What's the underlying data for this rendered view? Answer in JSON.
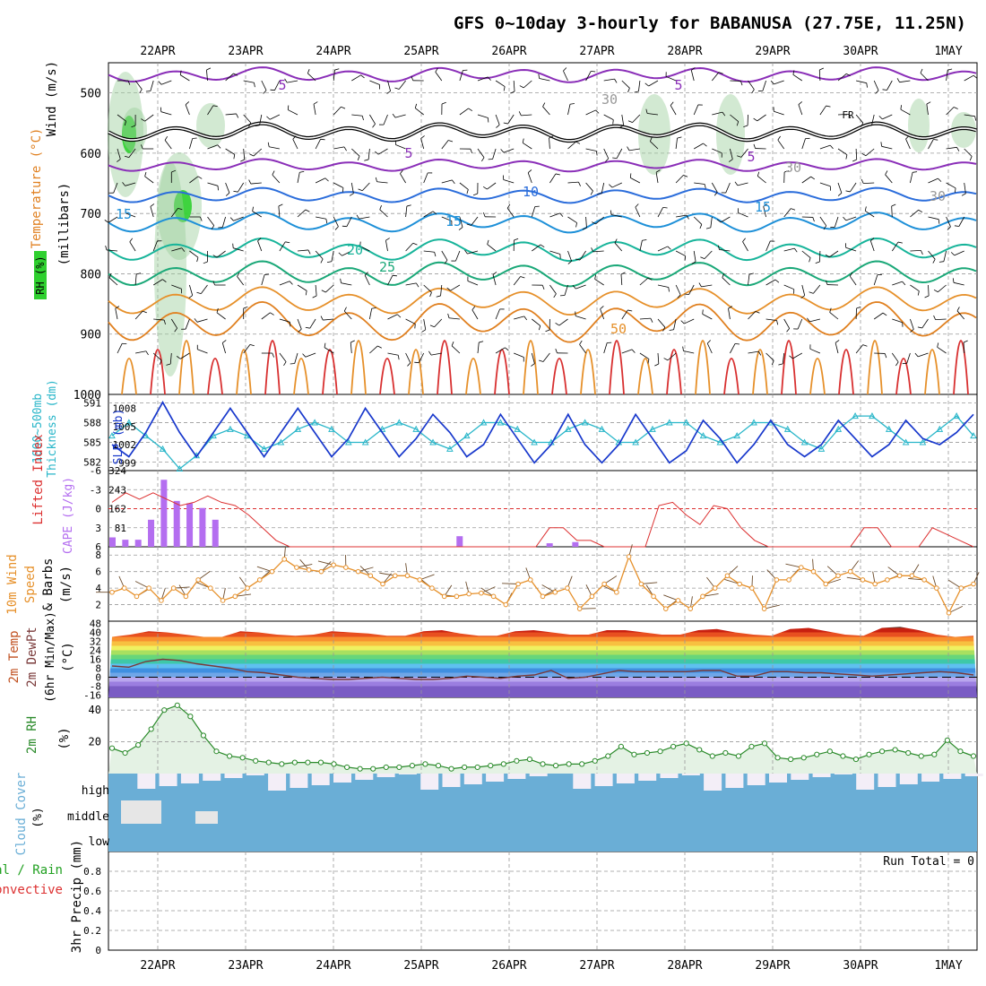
{
  "title": "GFS 0~10day 3-hourly for BABANUSA (27.75E, 11.25N)",
  "dates": [
    "22APR",
    "23APR",
    "24APR",
    "25APR",
    "26APR",
    "27APR",
    "28APR",
    "29APR",
    "30APR",
    "1MAY"
  ],
  "panels": {
    "upper_air": {
      "labels": [
        "Wind (m/s)",
        "Temperature (°C)",
        "RH (%)",
        "(millibars)"
      ],
      "ticks": [
        "500",
        "600",
        "700",
        "800",
        "900",
        "1000"
      ],
      "contour_labels": [
        "5",
        "5",
        "5",
        "5",
        "10",
        "15",
        "15",
        "15",
        "20",
        "25",
        "30",
        "30",
        "30",
        "50",
        "FR"
      ]
    },
    "pressure": {
      "labels": [
        "1000~500mb",
        "Thickness (dm)",
        "SLP (mb)"
      ],
      "thickness_ticks": [
        "591",
        "588",
        "585",
        "582"
      ],
      "slp_ticks": [
        "1008",
        "1005",
        "1002",
        "999"
      ]
    },
    "instability": {
      "labels": [
        "Lifted Index",
        "CAPE (J/kg)"
      ],
      "li_ticks": [
        "-6",
        "-3",
        "0",
        "3",
        "6"
      ],
      "cape_ticks": [
        "324",
        "243",
        "162",
        "81"
      ]
    },
    "wind10m": {
      "labels": [
        "10m Wind",
        "Speed",
        "& Barbs",
        "(m/s)"
      ],
      "ticks": [
        "8",
        "6",
        "4",
        "2"
      ]
    },
    "temp2m": {
      "labels": [
        "2m Temp",
        "2m DewPt",
        "(6hr Min/Max)",
        "(°C)"
      ],
      "ticks": [
        "48",
        "40",
        "32",
        "24",
        "16",
        "8",
        "0",
        "-8",
        "-16"
      ]
    },
    "rh2m": {
      "labels": [
        "2m RH",
        "(%)"
      ],
      "ticks": [
        "40",
        "20"
      ]
    },
    "cloud": {
      "labels": [
        "Cloud Cover",
        "(%)"
      ],
      "levels": [
        "high",
        "middle",
        "low"
      ]
    },
    "precip": {
      "labels": [
        "Total / Rain",
        "Convective",
        "3hr Precip (mm)"
      ],
      "ticks": [
        "0.8",
        "0.6",
        "0.4",
        "0.2",
        "0"
      ],
      "run_total": "Run Total = 0"
    }
  },
  "chart_data": {
    "type": "line",
    "x_dates": [
      "22APR",
      "23APR",
      "24APR",
      "25APR",
      "26APR",
      "27APR",
      "28APR",
      "29APR",
      "30APR",
      "1MAY"
    ],
    "slp_mb": [
      1002,
      1000,
      1004,
      1009,
      1004,
      1000,
      1004,
      1008,
      1004,
      1000,
      1004,
      1008,
      1004,
      1000,
      1003,
      1008,
      1004,
      1000,
      1003,
      1007,
      1004,
      1000,
      1002,
      1007,
      1003,
      999,
      1002,
      1007,
      1002,
      999,
      1002,
      1007,
      1003,
      999,
      1001,
      1006,
      1003,
      999,
      1002,
      1006,
      1002,
      1000,
      1002,
      1006,
      1003,
      1000,
      1002,
      1006,
      1003,
      1002,
      1004,
      1007
    ],
    "thickness_dm": [
      586,
      588,
      586,
      584,
      581,
      583,
      586,
      587,
      586,
      584,
      585,
      587,
      588,
      587,
      585,
      585,
      587,
      588,
      587,
      585,
      584,
      586,
      588,
      588,
      587,
      585,
      585,
      587,
      588,
      587,
      585,
      585,
      587,
      588,
      588,
      586,
      585,
      586,
      588,
      588,
      587,
      585,
      584,
      587,
      589,
      589,
      587,
      585,
      585,
      587,
      589,
      586
    ],
    "wind10m_speed_ms": [
      3.5,
      4,
      3,
      4,
      2.5,
      4,
      3,
      5,
      4,
      2.5,
      3,
      4,
      5,
      6,
      7.5,
      6.5,
      6.2,
      6,
      6.8,
      6.5,
      6,
      5.5,
      4.5,
      5.5,
      5.5,
      5,
      4,
      3,
      3,
      3.3,
      3.4,
      3,
      2,
      4.5,
      5,
      3,
      3.5,
      4,
      1.5,
      3,
      4.5,
      3.5,
      7.8,
      4.5,
      3,
      1.5,
      2.5,
      1.5,
      3,
      4,
      5.5,
      4.5,
      4,
      1.5,
      5,
      5,
      6.5,
      6,
      4.5,
      5.5,
      6,
      5,
      4.5,
      5,
      5.5,
      5.5,
      5,
      4,
      1,
      4,
      4.5
    ],
    "rh2m_pct": [
      16,
      13,
      18,
      28,
      40,
      43,
      36,
      24,
      14,
      11,
      10,
      8,
      7,
      6,
      7,
      7,
      7,
      6,
      4,
      3,
      3,
      4,
      4,
      5,
      6,
      5,
      3,
      4,
      4,
      5,
      6,
      8,
      9,
      6,
      5,
      6,
      6,
      8,
      11,
      17,
      12,
      13,
      14,
      17,
      19,
      15,
      11,
      13,
      11,
      17,
      19,
      10,
      9,
      10,
      12,
      14,
      11,
      9,
      12,
      14,
      15,
      13,
      11,
      12,
      21,
      14,
      11
    ],
    "temp2m_max_c": [
      36,
      38,
      41,
      40,
      38,
      36,
      36,
      41,
      40,
      38,
      37,
      38,
      41,
      40,
      39,
      37,
      37,
      41,
      42,
      39,
      37,
      37,
      41,
      42,
      40,
      38,
      38,
      42,
      42,
      40,
      38,
      38,
      42,
      43,
      40,
      38,
      37,
      43,
      44,
      41,
      38,
      37,
      44,
      45,
      42,
      38,
      36,
      37
    ],
    "dewpt2m_c": [
      10,
      9,
      14,
      16,
      15,
      12,
      10,
      8,
      5,
      4,
      2,
      0,
      -1,
      -2,
      -2,
      -1,
      0,
      -1,
      -2,
      -2,
      -1,
      1,
      0,
      -1,
      1,
      2,
      6,
      -1,
      0,
      3,
      6,
      5,
      5,
      5,
      5,
      6,
      6,
      1,
      1,
      5,
      5,
      4,
      4,
      3,
      2,
      1,
      2,
      3,
      4,
      5,
      4,
      2
    ],
    "cape_jkg": [
      40,
      30,
      30,
      115,
      285,
      195,
      185,
      165,
      115,
      0,
      0,
      0,
      0,
      0,
      0,
      0,
      0,
      0,
      0,
      0,
      0,
      0,
      0,
      0,
      0,
      0,
      0,
      45,
      0,
      0,
      0,
      0,
      0,
      0,
      15,
      0,
      20,
      0,
      0,
      0,
      0,
      0,
      0,
      0,
      0,
      0,
      0,
      0,
      0,
      0,
      0,
      0
    ],
    "lifted_index": [
      -1,
      -2.5,
      -1.5,
      -2.5,
      -1.5,
      -0.5,
      -1,
      -2,
      -1,
      -0.5,
      1,
      3,
      5,
      6,
      6,
      6,
      6,
      6,
      6,
      6,
      6,
      6,
      6,
      6,
      6,
      6,
      6,
      6,
      6,
      6,
      6,
      6,
      3,
      3,
      5,
      5,
      6,
      6,
      6,
      6,
      -0.5,
      -1,
      1,
      2.5,
      -0.5,
      0,
      3,
      5,
      6,
      6,
      6,
      6,
      6,
      6,
      6,
      3,
      3,
      6,
      6,
      6,
      3,
      4,
      5,
      6
    ],
    "precip_mm": [
      0,
      0,
      0,
      0,
      0,
      0,
      0,
      0,
      0,
      0
    ],
    "ylim_precip": [
      0,
      1
    ]
  },
  "colors": {
    "thickness": "#29b6c9",
    "slp": "#1838cc",
    "cape": "#b46ef0",
    "lifted_index": "#dc3030",
    "wind_speed": "#e6902a",
    "rh_line": "#2a8a2a",
    "cloud": "#6aaed6",
    "temp_contour_cold": "#8a2eb8",
    "temp_contour_cool": "#2b6ddb",
    "temp_contour_mid": "#17b49a",
    "temp_contour_warm": "#e6902a"
  }
}
